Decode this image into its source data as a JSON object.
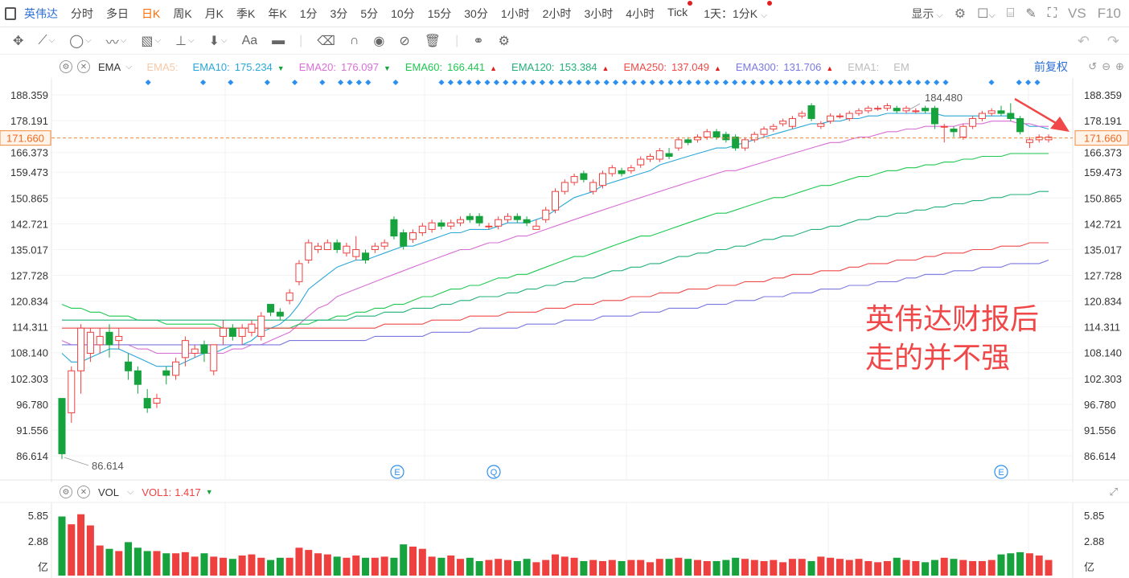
{
  "topbar": {
    "symbol": "英伟达",
    "periods": [
      "分时",
      "多日",
      "日K",
      "周K",
      "月K",
      "季K",
      "年K",
      "1分",
      "3分",
      "5分",
      "10分",
      "15分",
      "30分",
      "1小时",
      "2小时",
      "3小时",
      "4小时",
      "Tick"
    ],
    "active_period": "日K",
    "dropdown_label": "1天：1分K",
    "display_label": "显示",
    "vs_label": "VS",
    "f10_label": "F10"
  },
  "legend": {
    "indicator": "EMA",
    "items": [
      {
        "label": "EMA5:",
        "value": "",
        "color": "#f7c9a6",
        "dir": ""
      },
      {
        "label": "EMA10:",
        "value": "175.234",
        "color": "#2aa7d8",
        "dir": "down"
      },
      {
        "label": "EMA20:",
        "value": "176.097",
        "color": "#d86fd6",
        "dir": "down"
      },
      {
        "label": "EMA60:",
        "value": "166.441",
        "color": "#1ec850",
        "dir": "up"
      },
      {
        "label": "EMA120:",
        "value": "153.384",
        "color": "#22b07a",
        "dir": "up"
      },
      {
        "label": "EMA250:",
        "value": "137.049",
        "color": "#ef4a4a",
        "dir": "up"
      },
      {
        "label": "EMA300:",
        "value": "131.706",
        "color": "#7a78e0",
        "dir": "up"
      },
      {
        "label": "EMA1:",
        "value": "",
        "color": "#bbbbbb",
        "dir": ""
      },
      {
        "label": "EM",
        "value": "",
        "color": "#bbbbbb",
        "dir": ""
      }
    ],
    "adjust_label": "前复权"
  },
  "y_axis": [
    "188.359",
    "178.191",
    "166.373",
    "159.473",
    "150.865",
    "142.721",
    "135.017",
    "127.728",
    "120.834",
    "114.311",
    "108.140",
    "102.303",
    "96.780",
    "91.556",
    "86.614"
  ],
  "current_price": "171.660",
  "high_label": "184.480",
  "low_label": "86.614",
  "event_markers": [
    "E",
    "Q",
    "E"
  ],
  "volume": {
    "indicator": "VOL",
    "vol1_label": "VOL1:",
    "vol1_value": "1.417",
    "axis": [
      "5.85",
      "2.88",
      "亿"
    ],
    "colors": {
      "up": "#ef4040",
      "down": "#16a23d"
    }
  },
  "annotation": [
    "英伟达财报后",
    "走的并不强"
  ],
  "chart_data": {
    "type": "candlestick",
    "ylim": [
      86.614,
      188.359
    ],
    "y_scale": "log",
    "candles": [
      [
        98,
        87,
        98,
        86
      ],
      [
        95,
        104,
        105,
        93
      ],
      [
        104,
        114,
        115,
        99
      ],
      [
        108,
        113,
        114,
        106
      ],
      [
        110,
        112,
        114,
        108
      ],
      [
        113,
        110,
        115,
        107
      ],
      [
        111,
        112,
        114,
        109
      ],
      [
        106,
        104,
        108,
        102
      ],
      [
        104,
        101,
        105,
        99
      ],
      [
        98,
        96,
        100,
        95
      ],
      [
        97,
        98,
        99,
        96
      ],
      [
        104,
        103,
        105,
        101
      ],
      [
        103,
        106,
        107,
        102
      ],
      [
        107,
        111,
        112,
        105
      ],
      [
        108,
        109,
        110,
        107
      ],
      [
        110,
        108,
        111,
        106
      ],
      [
        104,
        110,
        110,
        103
      ],
      [
        112,
        114,
        116,
        110
      ],
      [
        114,
        112,
        115,
        111
      ],
      [
        112,
        114,
        115,
        110
      ],
      [
        113,
        115,
        116,
        112
      ],
      [
        112,
        117,
        118,
        111
      ],
      [
        120,
        118,
        120,
        117
      ],
      [
        118,
        117,
        119,
        116
      ],
      [
        121,
        123,
        124,
        120
      ],
      [
        126,
        131,
        132,
        125
      ],
      [
        132,
        137,
        138,
        131
      ],
      [
        135,
        136,
        137,
        134
      ],
      [
        135,
        137,
        138,
        135
      ],
      [
        137,
        135,
        138,
        134
      ],
      [
        134,
        136,
        137,
        133
      ],
      [
        133,
        135,
        139,
        132
      ],
      [
        134,
        132,
        135,
        131
      ],
      [
        135,
        136,
        137,
        134
      ],
      [
        136,
        137,
        138,
        135
      ],
      [
        144,
        139,
        145,
        138
      ],
      [
        140,
        136,
        141,
        135
      ],
      [
        138,
        140,
        141,
        137
      ],
      [
        140,
        142,
        143,
        139
      ],
      [
        141,
        143,
        144,
        140
      ],
      [
        143,
        142,
        144,
        141
      ],
      [
        142,
        143,
        144,
        141
      ],
      [
        143,
        144,
        145,
        142
      ],
      [
        145,
        144,
        146,
        143
      ],
      [
        145,
        143,
        146,
        142
      ],
      [
        142,
        142,
        143,
        141
      ],
      [
        142,
        144,
        145,
        141
      ],
      [
        144,
        145,
        146,
        143
      ],
      [
        145,
        144,
        146,
        143
      ],
      [
        144,
        143,
        145,
        142
      ],
      [
        141,
        142,
        144,
        141
      ],
      [
        144,
        147,
        148,
        143
      ],
      [
        147,
        153,
        154,
        146
      ],
      [
        153,
        156,
        157,
        152
      ],
      [
        156,
        158,
        159,
        155
      ],
      [
        159,
        157,
        160,
        156
      ],
      [
        153,
        156,
        157,
        152
      ],
      [
        155,
        159,
        160,
        154
      ],
      [
        159,
        161,
        162,
        158
      ],
      [
        160,
        159,
        161,
        158
      ],
      [
        160,
        161,
        162,
        159
      ],
      [
        162,
        164,
        165,
        161
      ],
      [
        164,
        165,
        166,
        163
      ],
      [
        164,
        167,
        168,
        163
      ],
      [
        166,
        165,
        168,
        164
      ],
      [
        168,
        171,
        172,
        167
      ],
      [
        171,
        170,
        172,
        169
      ],
      [
        171,
        172,
        173,
        170
      ],
      [
        172,
        174,
        175,
        171
      ],
      [
        174,
        172,
        175,
        171
      ],
      [
        173,
        171,
        174,
        170
      ],
      [
        172,
        168,
        173,
        167
      ],
      [
        168,
        171,
        172,
        167
      ],
      [
        171,
        173,
        174,
        170
      ],
      [
        173,
        175,
        176,
        172
      ],
      [
        175,
        176,
        177,
        174
      ],
      [
        177,
        178,
        179,
        176
      ],
      [
        176,
        179,
        180,
        175
      ],
      [
        180,
        181,
        182,
        179
      ],
      [
        184,
        179,
        185,
        178
      ],
      [
        176,
        177,
        178,
        175
      ],
      [
        178,
        180,
        181,
        177
      ],
      [
        180,
        180,
        181,
        179
      ],
      [
        179,
        181,
        182,
        178
      ],
      [
        181,
        182,
        183,
        180
      ],
      [
        182,
        183,
        184,
        181
      ],
      [
        183,
        183,
        184,
        182
      ],
      [
        183,
        184,
        185,
        182
      ],
      [
        183,
        182,
        184,
        181
      ],
      [
        182,
        183,
        184,
        181
      ],
      [
        182,
        182,
        183,
        181
      ],
      [
        183,
        182,
        184,
        181
      ],
      [
        183,
        177,
        184,
        175
      ],
      [
        176,
        176,
        177,
        170
      ],
      [
        175,
        174,
        176,
        172
      ],
      [
        172,
        176,
        177,
        171
      ],
      [
        176,
        179,
        180,
        175
      ],
      [
        179,
        181,
        182,
        178
      ],
      [
        181,
        182,
        183,
        180
      ],
      [
        182,
        181,
        184,
        180
      ],
      [
        181,
        179,
        185,
        178
      ],
      [
        179,
        174,
        180,
        173
      ],
      [
        170,
        171,
        172,
        168
      ],
      [
        171,
        172,
        173,
        170
      ],
      [
        171,
        172,
        173,
        170
      ]
    ],
    "volumes": [
      5.3,
      4.6,
      5.5,
      4.5,
      2.7,
      2.4,
      2.2,
      3.0,
      2.5,
      2.2,
      2.2,
      2.0,
      2.0,
      2.1,
      1.7,
      2.0,
      1.7,
      1.6,
      1.5,
      1.8,
      1.9,
      1.6,
      1.4,
      1.6,
      1.6,
      2.5,
      2.3,
      2.0,
      1.9,
      1.7,
      1.6,
      1.8,
      1.6,
      1.6,
      1.7,
      1.6,
      2.8,
      2.6,
      2.4,
      1.7,
      1.6,
      1.8,
      1.5,
      1.6,
      1.3,
      1.4,
      1.5,
      1.4,
      1.3,
      1.5,
      1.2,
      1.4,
      1.9,
      1.7,
      1.6,
      1.3,
      1.4,
      1.3,
      1.4,
      1.3,
      1.4,
      1.4,
      1.2,
      1.5,
      1.5,
      1.6,
      1.5,
      1.4,
      1.3,
      1.3,
      1.4,
      1.6,
      1.5,
      1.4,
      1.3,
      1.4,
      1.2,
      1.5,
      1.5,
      1.3,
      1.7,
      1.6,
      1.5,
      1.4,
      1.5,
      1.3,
      1.2,
      1.3,
      1.6,
      1.4,
      1.3,
      1.2,
      1.4,
      1.6,
      1.5,
      1.4,
      1.3,
      1.3,
      1.4,
      1.9,
      2.0,
      2.1,
      2.0,
      1.8,
      1.4
    ],
    "ema": {
      "EMA10": [
        108,
        106,
        106,
        107,
        108,
        109,
        109,
        108,
        107,
        106,
        105,
        105,
        105,
        106,
        107,
        108,
        108,
        109,
        110,
        110,
        111,
        113,
        114,
        115,
        117,
        120,
        124,
        126,
        128,
        130,
        131,
        132,
        132,
        133,
        134,
        135,
        136,
        136,
        137,
        138,
        139,
        140,
        140,
        141,
        141,
        141,
        142,
        143,
        143,
        143,
        144,
        145,
        147,
        149,
        151,
        152,
        153,
        155,
        156,
        157,
        158,
        159,
        160,
        162,
        163,
        164,
        165,
        166,
        167,
        168,
        168,
        169,
        170,
        171,
        172,
        173,
        174,
        175,
        176,
        177,
        177,
        178,
        178,
        179,
        179,
        180,
        180,
        181,
        181,
        181,
        181,
        181,
        181,
        180,
        180,
        180,
        180,
        180,
        180,
        180,
        180,
        178,
        176,
        176,
        175
      ],
      "EMA20": [
        111,
        110,
        110,
        110,
        110,
        110,
        110,
        110,
        109,
        109,
        108,
        108,
        108,
        108,
        108,
        108,
        108,
        108,
        109,
        109,
        110,
        110,
        111,
        112,
        113,
        115,
        117,
        119,
        120,
        122,
        123,
        124,
        125,
        126,
        127,
        128,
        129,
        130,
        131,
        132,
        133,
        134,
        135,
        135,
        136,
        137,
        137,
        138,
        139,
        139,
        140,
        141,
        142,
        143,
        144,
        145,
        146,
        147,
        148,
        149,
        150,
        151,
        152,
        153,
        154,
        155,
        156,
        157,
        158,
        159,
        160,
        160,
        161,
        162,
        163,
        164,
        165,
        166,
        167,
        168,
        169,
        170,
        170,
        171,
        172,
        172,
        173,
        174,
        174,
        175,
        175,
        176,
        176,
        176,
        176,
        177,
        177,
        177,
        178,
        178,
        178,
        177,
        177,
        176,
        176
      ],
      "EMA60": [
        120,
        119,
        119,
        118,
        118,
        117,
        117,
        117,
        116,
        116,
        116,
        115,
        115,
        115,
        115,
        115,
        115,
        114,
        114,
        114,
        114,
        114,
        114,
        114,
        114,
        115,
        115,
        116,
        116,
        117,
        117,
        118,
        118,
        119,
        119,
        120,
        120,
        121,
        122,
        122,
        123,
        124,
        124,
        125,
        125,
        126,
        127,
        127,
        128,
        128,
        129,
        130,
        131,
        132,
        133,
        133,
        134,
        135,
        136,
        137,
        138,
        139,
        139,
        140,
        141,
        142,
        143,
        144,
        145,
        146,
        146,
        147,
        148,
        149,
        150,
        151,
        151,
        152,
        153,
        154,
        155,
        155,
        156,
        157,
        158,
        158,
        159,
        160,
        160,
        161,
        161,
        162,
        162,
        163,
        163,
        164,
        164,
        165,
        165,
        165,
        166,
        166,
        166,
        166,
        166
      ],
      "EMA120": [
        116,
        116,
        116,
        116,
        116,
        116,
        116,
        116,
        116,
        116,
        116,
        116,
        116,
        116,
        116,
        116,
        116,
        116,
        116,
        116,
        116,
        116,
        116,
        116,
        116,
        116,
        116,
        116,
        116,
        116,
        116,
        117,
        117,
        117,
        118,
        118,
        118,
        119,
        119,
        119,
        120,
        120,
        121,
        121,
        122,
        122,
        122,
        123,
        123,
        124,
        124,
        125,
        125,
        126,
        126,
        127,
        127,
        128,
        129,
        129,
        130,
        130,
        131,
        131,
        132,
        133,
        133,
        134,
        134,
        135,
        135,
        136,
        136,
        137,
        138,
        138,
        139,
        139,
        140,
        141,
        141,
        142,
        142,
        143,
        144,
        144,
        145,
        145,
        146,
        146,
        147,
        147,
        148,
        148,
        149,
        149,
        150,
        150,
        151,
        151,
        152,
        152,
        152,
        153,
        153
      ],
      "EMA250": [
        114,
        114,
        114,
        114,
        114,
        114,
        114,
        114,
        114,
        114,
        114,
        114,
        114,
        114,
        114,
        114,
        114,
        114,
        114,
        114,
        114,
        114,
        114,
        114,
        114,
        114,
        114,
        114,
        114,
        114,
        114,
        114,
        114,
        114,
        115,
        115,
        115,
        115,
        115,
        116,
        116,
        116,
        116,
        117,
        117,
        117,
        117,
        118,
        118,
        118,
        118,
        119,
        119,
        119,
        120,
        120,
        120,
        121,
        121,
        121,
        122,
        122,
        122,
        123,
        123,
        123,
        124,
        124,
        124,
        125,
        125,
        125,
        126,
        126,
        126,
        127,
        127,
        128,
        128,
        128,
        129,
        129,
        129,
        130,
        130,
        131,
        131,
        131,
        132,
        132,
        132,
        133,
        133,
        134,
        134,
        134,
        135,
        135,
        135,
        136,
        136,
        136,
        137,
        137,
        137
      ],
      "EMA300": [
        110,
        110,
        110,
        110,
        110,
        110,
        110,
        110,
        110,
        110,
        110,
        110,
        110,
        110,
        110,
        110,
        110,
        110,
        110,
        110,
        110,
        110,
        110,
        110,
        111,
        111,
        111,
        111,
        111,
        111,
        111,
        111,
        111,
        112,
        112,
        112,
        112,
        112,
        112,
        113,
        113,
        113,
        113,
        113,
        114,
        114,
        114,
        114,
        114,
        115,
        115,
        115,
        115,
        116,
        116,
        116,
        116,
        117,
        117,
        117,
        117,
        118,
        118,
        118,
        119,
        119,
        119,
        119,
        120,
        120,
        120,
        121,
        121,
        121,
        122,
        122,
        122,
        123,
        123,
        123,
        124,
        124,
        124,
        125,
        125,
        125,
        126,
        126,
        126,
        127,
        127,
        128,
        128,
        128,
        129,
        129,
        129,
        130,
        130,
        130,
        131,
        131,
        131,
        131,
        132
      ]
    }
  }
}
